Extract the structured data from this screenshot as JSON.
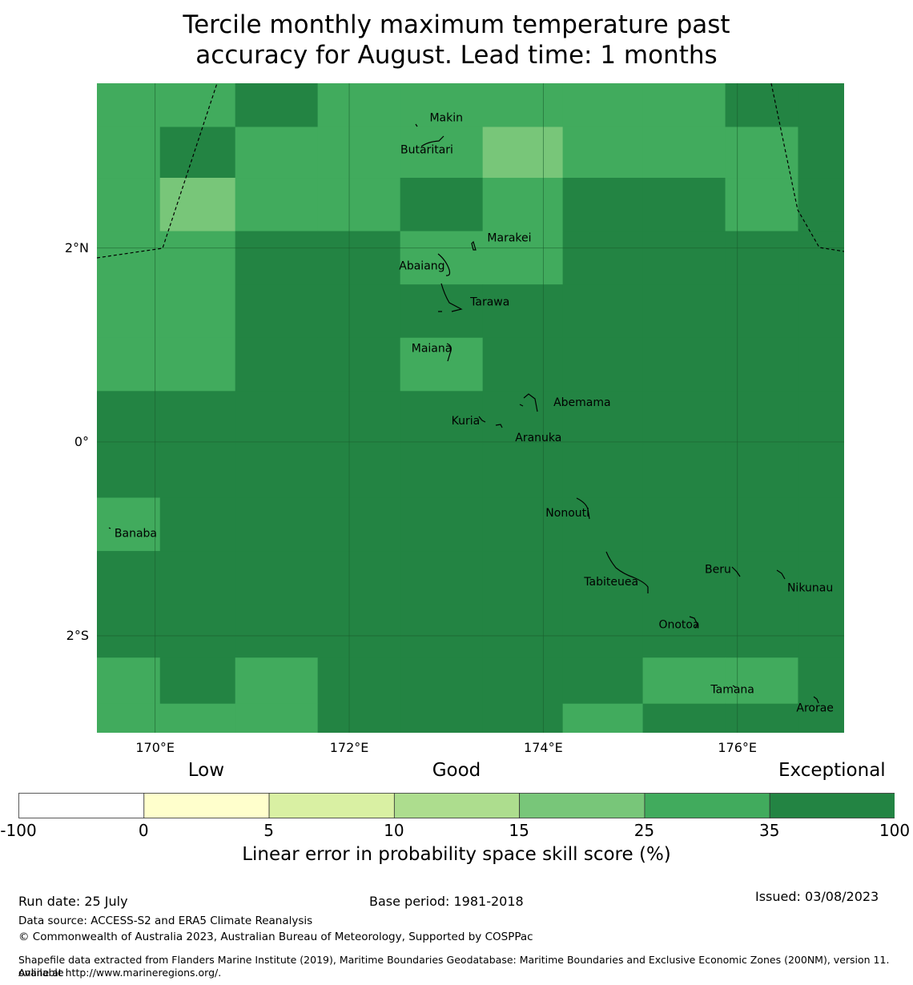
{
  "title_line1": "Tercile monthly maximum temperature past",
  "title_line2": "accuracy for August. Lead time: 1 months",
  "map": {
    "lon_range": [
      169.4,
      177.1
    ],
    "lat_range": [
      -3.0,
      3.7
    ],
    "lat_ticks": [
      {
        "value": 2,
        "label": "2°N"
      },
      {
        "value": 0,
        "label": "0°"
      },
      {
        "value": -2,
        "label": "2°S"
      }
    ],
    "lon_ticks": [
      {
        "value": 170,
        "label": "170°E"
      },
      {
        "value": 172,
        "label": "172°E"
      },
      {
        "value": 174,
        "label": "174°E"
      },
      {
        "value": 176,
        "label": "176°E"
      }
    ],
    "places": [
      {
        "name": "Makin",
        "lon": 173.0,
        "lat": 3.35
      },
      {
        "name": "Butaritari",
        "lon": 172.8,
        "lat": 3.02
      },
      {
        "name": "Marakei",
        "lon": 173.65,
        "lat": 2.11
      },
      {
        "name": "Abaiang",
        "lon": 172.75,
        "lat": 1.82
      },
      {
        "name": "Tarawa",
        "lon": 173.45,
        "lat": 1.45
      },
      {
        "name": "Maiana",
        "lon": 172.85,
        "lat": 0.97
      },
      {
        "name": "Abemama",
        "lon": 174.4,
        "lat": 0.41
      },
      {
        "name": "Kuria",
        "lon": 173.2,
        "lat": 0.22
      },
      {
        "name": "Aranuka",
        "lon": 173.95,
        "lat": 0.05
      },
      {
        "name": "Nonouti",
        "lon": 174.25,
        "lat": -0.73
      },
      {
        "name": "Banaba",
        "lon": 169.8,
        "lat": -0.94
      },
      {
        "name": "Beru",
        "lon": 175.8,
        "lat": -1.31
      },
      {
        "name": "Tabiteuea",
        "lon": 174.7,
        "lat": -1.44
      },
      {
        "name": "Nikunau",
        "lon": 176.75,
        "lat": -1.5
      },
      {
        "name": "Onotoa",
        "lon": 175.4,
        "lat": -1.88
      },
      {
        "name": "Tamana",
        "lon": 175.95,
        "lat": -2.55
      },
      {
        "name": "Arorae",
        "lon": 176.8,
        "lat": -2.74
      }
    ]
  },
  "chart_data": {
    "type": "heatmap",
    "x": [
      169.7,
      170.4,
      171.25,
      172.1,
      172.95,
      173.8,
      174.6,
      175.45,
      176.3,
      176.95
    ],
    "y": [
      3.5,
      3.0,
      2.45,
      1.9,
      1.35,
      0.8,
      0.25,
      -0.3,
      -0.85,
      -1.4,
      -1.95,
      -2.5,
      -2.9
    ],
    "category_rows": [
      [
        5,
        5,
        6,
        5,
        5,
        5,
        5,
        5,
        6,
        6
      ],
      [
        5,
        6,
        5,
        5,
        5,
        4,
        5,
        5,
        5,
        6
      ],
      [
        5,
        4,
        5,
        5,
        6,
        5,
        6,
        6,
        5,
        6
      ],
      [
        5,
        5,
        6,
        6,
        5,
        5,
        6,
        6,
        6,
        6
      ],
      [
        5,
        5,
        6,
        6,
        6,
        6,
        6,
        6,
        6,
        6
      ],
      [
        5,
        5,
        6,
        6,
        5,
        6,
        6,
        6,
        6,
        6
      ],
      [
        6,
        6,
        6,
        6,
        6,
        6,
        6,
        6,
        6,
        6
      ],
      [
        6,
        6,
        6,
        6,
        6,
        6,
        6,
        6,
        6,
        6
      ],
      [
        5,
        6,
        6,
        6,
        6,
        6,
        6,
        6,
        6,
        6
      ],
      [
        6,
        6,
        6,
        6,
        6,
        6,
        6,
        6,
        6,
        6
      ],
      [
        6,
        6,
        6,
        6,
        6,
        6,
        6,
        6,
        6,
        6
      ],
      [
        5,
        6,
        5,
        6,
        6,
        6,
        6,
        5,
        5,
        6
      ],
      [
        5,
        5,
        5,
        6,
        6,
        6,
        5,
        6,
        6,
        6
      ]
    ],
    "colorbar": {
      "bounds": [
        -100,
        0,
        5,
        10,
        15,
        25,
        35,
        100
      ],
      "colors": [
        "#ffffff",
        "#ffffcc",
        "#d9f0a3",
        "#addd8e",
        "#78c679",
        "#41ab5d",
        "#238443"
      ],
      "categories": [
        {
          "label": "Low",
          "value": 0
        },
        {
          "label": "Good",
          "value": 10
        },
        {
          "label": "Exceptional",
          "value": 35
        }
      ],
      "label": "Linear error in probability space skill score (%)"
    }
  },
  "footer": {
    "run_date": "Run date: 25 July",
    "base_period": "Base period: 1981-2018",
    "issued": "Issued: 03/08/2023",
    "data_source": "Data source: ACCESS-S2 and ERA5 Climate Reanalysis",
    "copyright": "© Commonwealth of Australia 2023, Australian Bureau of Meteorology, Supported by COSPPac",
    "shapefile_line1": "Shapefile data extracted from Flanders Marine Institute (2019), Maritime Boundaries Geodatabase: Maritime Boundaries and Exclusive Economic Zones (200NM), version 11. Available",
    "shapefile_line2": "online at http://www.marineregions.org/."
  }
}
